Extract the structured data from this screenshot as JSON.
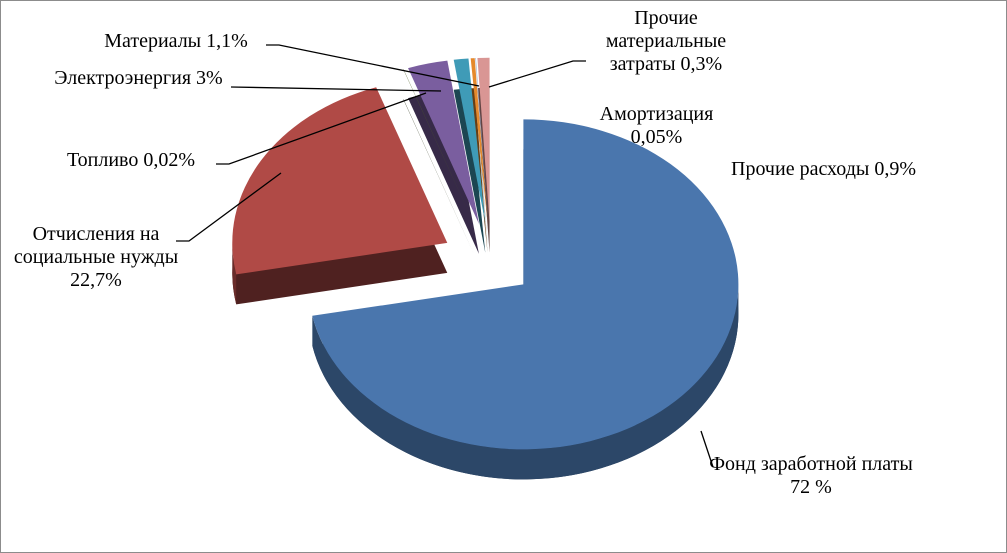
{
  "chart_data": {
    "type": "pie",
    "categories": [
      "Фонд заработной платы",
      "Отчисления на социальные нужды",
      "Топливо",
      "Электроэнергия",
      "Материалы",
      "Прочие материальные затраты",
      "Амортизация",
      "Прочие расходы"
    ],
    "values": [
      72,
      22.7,
      0.02,
      3,
      1.1,
      0.3,
      0.05,
      0.9
    ],
    "value_labels": [
      "72 %",
      "22,7%",
      "0,02%",
      "3%",
      "1,1%",
      "0,3%",
      "0,05%",
      "0,9%"
    ],
    "colors": [
      "#4a76ad",
      "#b04a46",
      "#4f6228",
      "#7a5e9f",
      "#3f9bb7",
      "#e5892c",
      "#a3b6d6",
      "#d99694"
    ]
  }
}
